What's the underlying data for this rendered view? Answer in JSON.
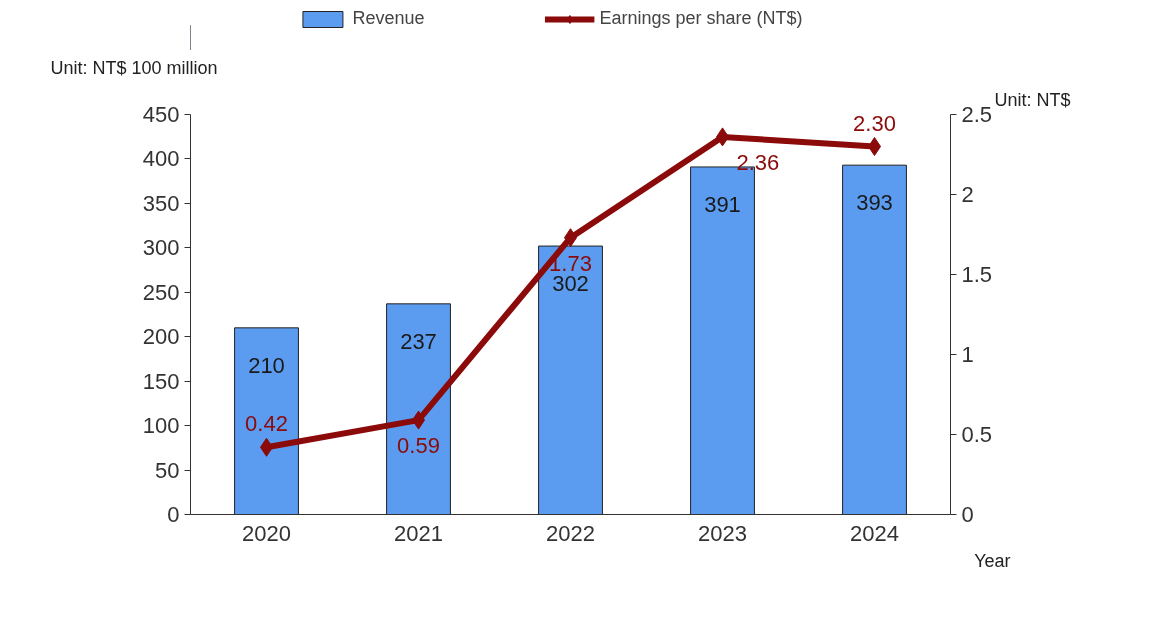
{
  "chart_data": {
    "type": "bar",
    "categories": [
      "2020",
      "2021",
      "2022",
      "2023",
      "2024"
    ],
    "xlabel": "Year",
    "ylabel": "Unit: NT$ 100 million",
    "y2label": "Unit: NT$",
    "series": [
      {
        "name": "Revenue",
        "color": "#5b9cf0",
        "values": [
          210,
          237,
          302,
          391,
          393
        ],
        "value_labels": [
          "210",
          "237",
          "302",
          "391",
          "393"
        ]
      },
      {
        "name": "Earnings per share (NT$)",
        "type": "line",
        "axis": "y2",
        "color": "#8b0a0a",
        "marker": "diamond",
        "values": [
          0.42,
          0.59,
          1.73,
          2.36,
          2.3
        ],
        "value_labels": [
          "0.42",
          "0.59",
          "1.73",
          "2.36",
          "2.30"
        ]
      }
    ],
    "ylim": [
      0,
      450
    ],
    "yticks": [
      0,
      50,
      100,
      150,
      200,
      250,
      300,
      350,
      400,
      450
    ],
    "y2lim": [
      0,
      2.5
    ],
    "y2ticks": [
      0,
      0.5,
      1,
      1.5,
      2,
      2.5
    ],
    "grid": false,
    "legend": "top"
  }
}
